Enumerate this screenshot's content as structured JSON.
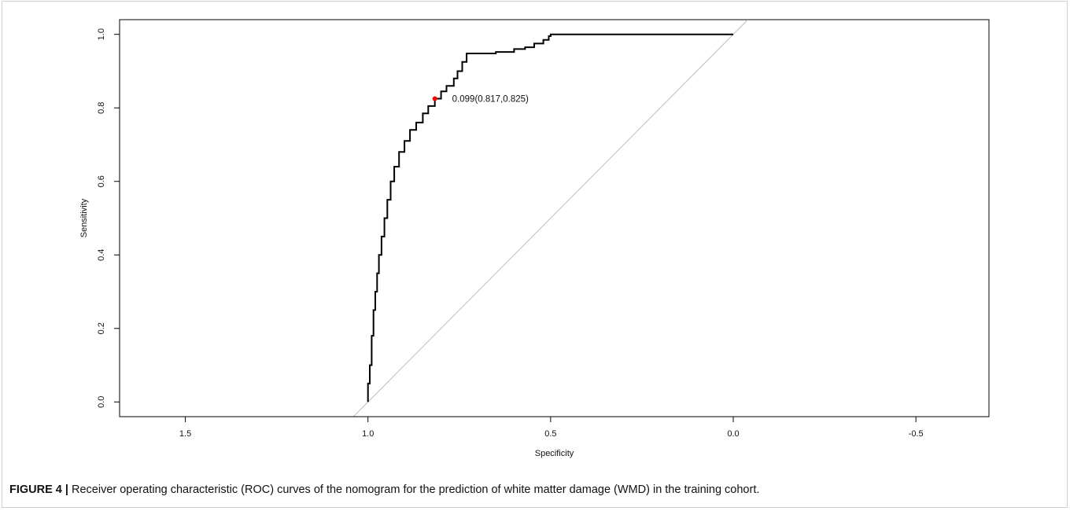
{
  "chart_data": {
    "type": "line",
    "xlabel": "Specificity",
    "ylabel": "Sensitivity",
    "xlim": [
      1.68,
      -0.7
    ],
    "ylim": [
      -0.04,
      1.04
    ],
    "x_reversed": true,
    "grid": false,
    "x_ticks": [
      1.5,
      1.0,
      0.5,
      0.0,
      -0.5
    ],
    "x_tick_labels": [
      "1.5",
      "1.0",
      "0.5",
      "0.0",
      "-0.5"
    ],
    "y_ticks": [
      0.0,
      0.2,
      0.4,
      0.6,
      0.8,
      1.0
    ],
    "y_tick_labels": [
      "0.0",
      "0.2",
      "0.4",
      "0.6",
      "0.8",
      "1.0"
    ],
    "diagonal": {
      "points": [
        [
          1.04,
          -0.04
        ],
        [
          -0.04,
          1.04
        ]
      ],
      "color": "#bebebe"
    },
    "series": [
      {
        "color": "#000000",
        "points": [
          [
            1.0,
            0.0
          ],
          [
            1.0,
            0.05
          ],
          [
            0.995,
            0.1
          ],
          [
            0.99,
            0.18
          ],
          [
            0.985,
            0.25
          ],
          [
            0.98,
            0.3
          ],
          [
            0.975,
            0.35
          ],
          [
            0.97,
            0.4
          ],
          [
            0.963,
            0.45
          ],
          [
            0.955,
            0.5
          ],
          [
            0.947,
            0.55
          ],
          [
            0.938,
            0.6
          ],
          [
            0.928,
            0.64
          ],
          [
            0.915,
            0.68
          ],
          [
            0.9,
            0.71
          ],
          [
            0.885,
            0.74
          ],
          [
            0.868,
            0.76
          ],
          [
            0.85,
            0.785
          ],
          [
            0.835,
            0.805
          ],
          [
            0.817,
            0.825
          ],
          [
            0.8,
            0.845
          ],
          [
            0.785,
            0.86
          ],
          [
            0.765,
            0.88
          ],
          [
            0.755,
            0.9
          ],
          [
            0.742,
            0.925
          ],
          [
            0.73,
            0.948
          ],
          [
            0.7,
            0.948
          ],
          [
            0.65,
            0.952
          ],
          [
            0.6,
            0.96
          ],
          [
            0.57,
            0.965
          ],
          [
            0.545,
            0.975
          ],
          [
            0.52,
            0.985
          ],
          [
            0.505,
            0.995
          ],
          [
            0.5,
            1.0
          ],
          [
            0.3,
            1.0
          ],
          [
            0.0,
            1.0
          ]
        ]
      }
    ],
    "annotations": [
      {
        "text": "0.099(0.817,0.825)",
        "x": 0.817,
        "y": 0.825,
        "marker_color": "#ff0000"
      }
    ]
  },
  "caption": {
    "label": "FIGURE 4 |",
    "text": " Receiver operating characteristic (ROC) curves of the nomogram for the prediction of white matter damage (WMD) in the training cohort."
  }
}
